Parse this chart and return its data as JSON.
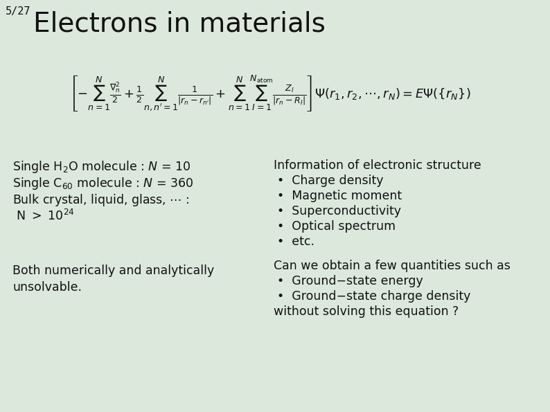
{
  "background_color": "#dce8dc",
  "slide_number": "5/27",
  "title": "Electrons in materials",
  "title_fontsize": 28,
  "slide_num_fontsize": 11,
  "equation": "\\left[ -\\sum_{n=1}^{N} \\frac{\\nabla_n^2}{2} + \\frac{1}{2} \\sum_{n,n'=1}^{N} \\frac{1}{|r_n - r_{n'}|} + \\sum_{n=1}^{N}\\sum_{I=1}^{N_{\\mathrm{atom}}} \\frac{Z_I}{|r_n - R_I|} \\right] \\Psi(r_1, r_2, \\cdots, r_N) = E\\Psi(\\{r_N\\})",
  "left_block_lines": [
    "Single H$_2$O molecule : $\\mathit{N}$ = 10",
    "Single C$_{60}$ molecule : $\\mathit{N}$ = 360",
    "Bulk crystal, liquid, glass, $\\cdots$ :",
    " N $>$ 10$^{24}$"
  ],
  "right_block_title": "Information of electronic structure",
  "right_block_items": [
    "Charge density",
    "Magnetic moment",
    "Superconductivity",
    "Optical spectrum",
    "etc."
  ],
  "bottom_left_lines": [
    "Both numerically and analytically",
    "unsolvable."
  ],
  "bottom_right_title": "Can we obtain a few quantities such as",
  "bottom_right_items": [
    "Ground−state energy",
    "Ground−state charge density"
  ],
  "bottom_right_footer": "without solving this equation ?",
  "text_color": "#111111",
  "body_fontsize": 12.5,
  "eq_fontsize": 13
}
